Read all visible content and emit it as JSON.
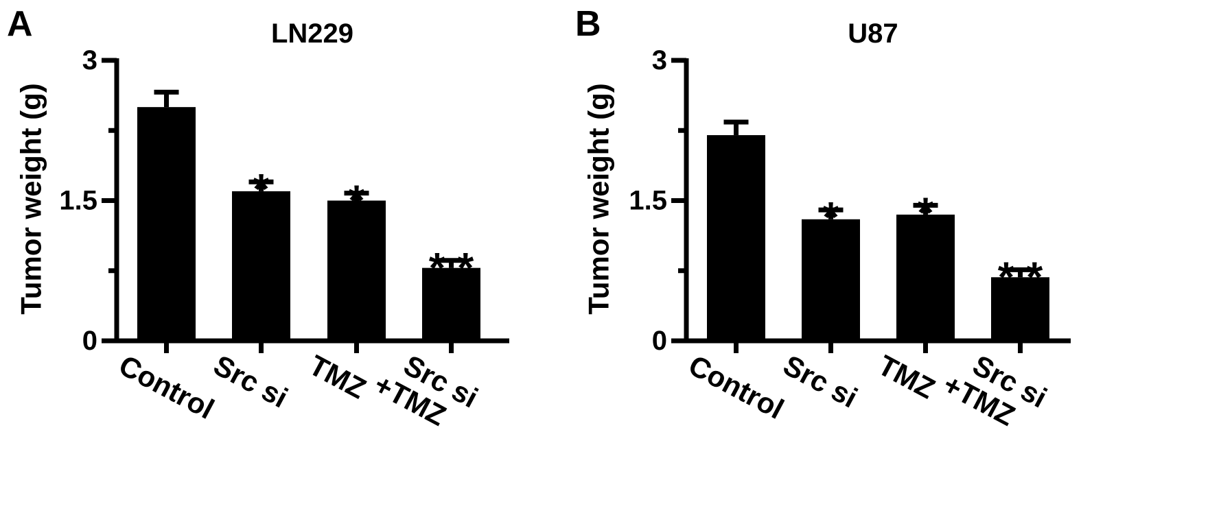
{
  "chart_data": [
    {
      "type": "bar",
      "panel": "A",
      "title": "LN229",
      "ylabel": "Tumor weight (g)",
      "ylim": [
        0,
        3
      ],
      "yticks": [
        "0",
        "1.5",
        "3"
      ],
      "categories": [
        [
          "Control"
        ],
        [
          "Src si"
        ],
        [
          "TMZ"
        ],
        [
          "Src si",
          "+TMZ"
        ]
      ],
      "values": [
        2.5,
        1.6,
        1.5,
        0.78
      ],
      "errors": [
        0.16,
        0.1,
        0.08,
        0.08
      ],
      "significance": [
        "",
        "*",
        "*",
        "* *"
      ],
      "bar_color": "#000000"
    },
    {
      "type": "bar",
      "panel": "B",
      "title": "U87",
      "ylabel": "Tumor weight (g)",
      "ylim": [
        0,
        3
      ],
      "yticks": [
        "0",
        "1.5",
        "3"
      ],
      "categories": [
        [
          "Control"
        ],
        [
          "Src si"
        ],
        [
          "TMZ"
        ],
        [
          "Src si",
          "+TMZ"
        ]
      ],
      "values": [
        2.2,
        1.3,
        1.35,
        0.68
      ],
      "errors": [
        0.14,
        0.1,
        0.1,
        0.08
      ],
      "significance": [
        "",
        "*",
        "*",
        "* *"
      ],
      "bar_color": "#000000"
    }
  ]
}
